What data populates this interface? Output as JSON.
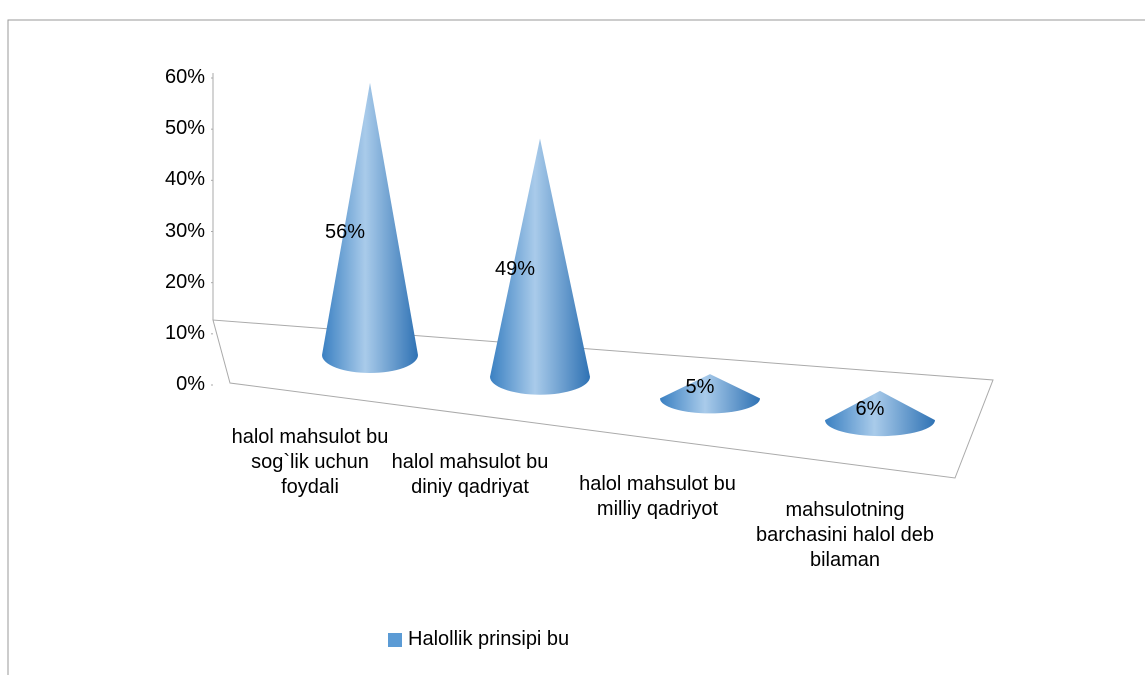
{
  "chart_data": {
    "type": "cone",
    "categories": [
      "halol mahsulot bu sog`lik uchun foydali",
      "halol mahsulot bu diniy qadriyat",
      "halol mahsulot bu milliy qadriyot",
      "mahsulotning barchasini halol deb bilaman"
    ],
    "series": [
      {
        "name": "Halollik prinsipi bu",
        "color": "#5b9bd5",
        "values": [
          56,
          49,
          5,
          6
        ],
        "value_labels": [
          "56%",
          "49%",
          "5%",
          "6%"
        ]
      }
    ],
    "ylim": [
      0,
      60
    ],
    "yticks": [
      {
        "value": 0,
        "label": "0%"
      },
      {
        "value": 10,
        "label": "10%"
      },
      {
        "value": 20,
        "label": "20%"
      },
      {
        "value": 30,
        "label": "30%"
      },
      {
        "value": 40,
        "label": "40%"
      },
      {
        "value": 50,
        "label": "50%"
      },
      {
        "value": 60,
        "label": "60%"
      }
    ],
    "legend": "bottom"
  }
}
